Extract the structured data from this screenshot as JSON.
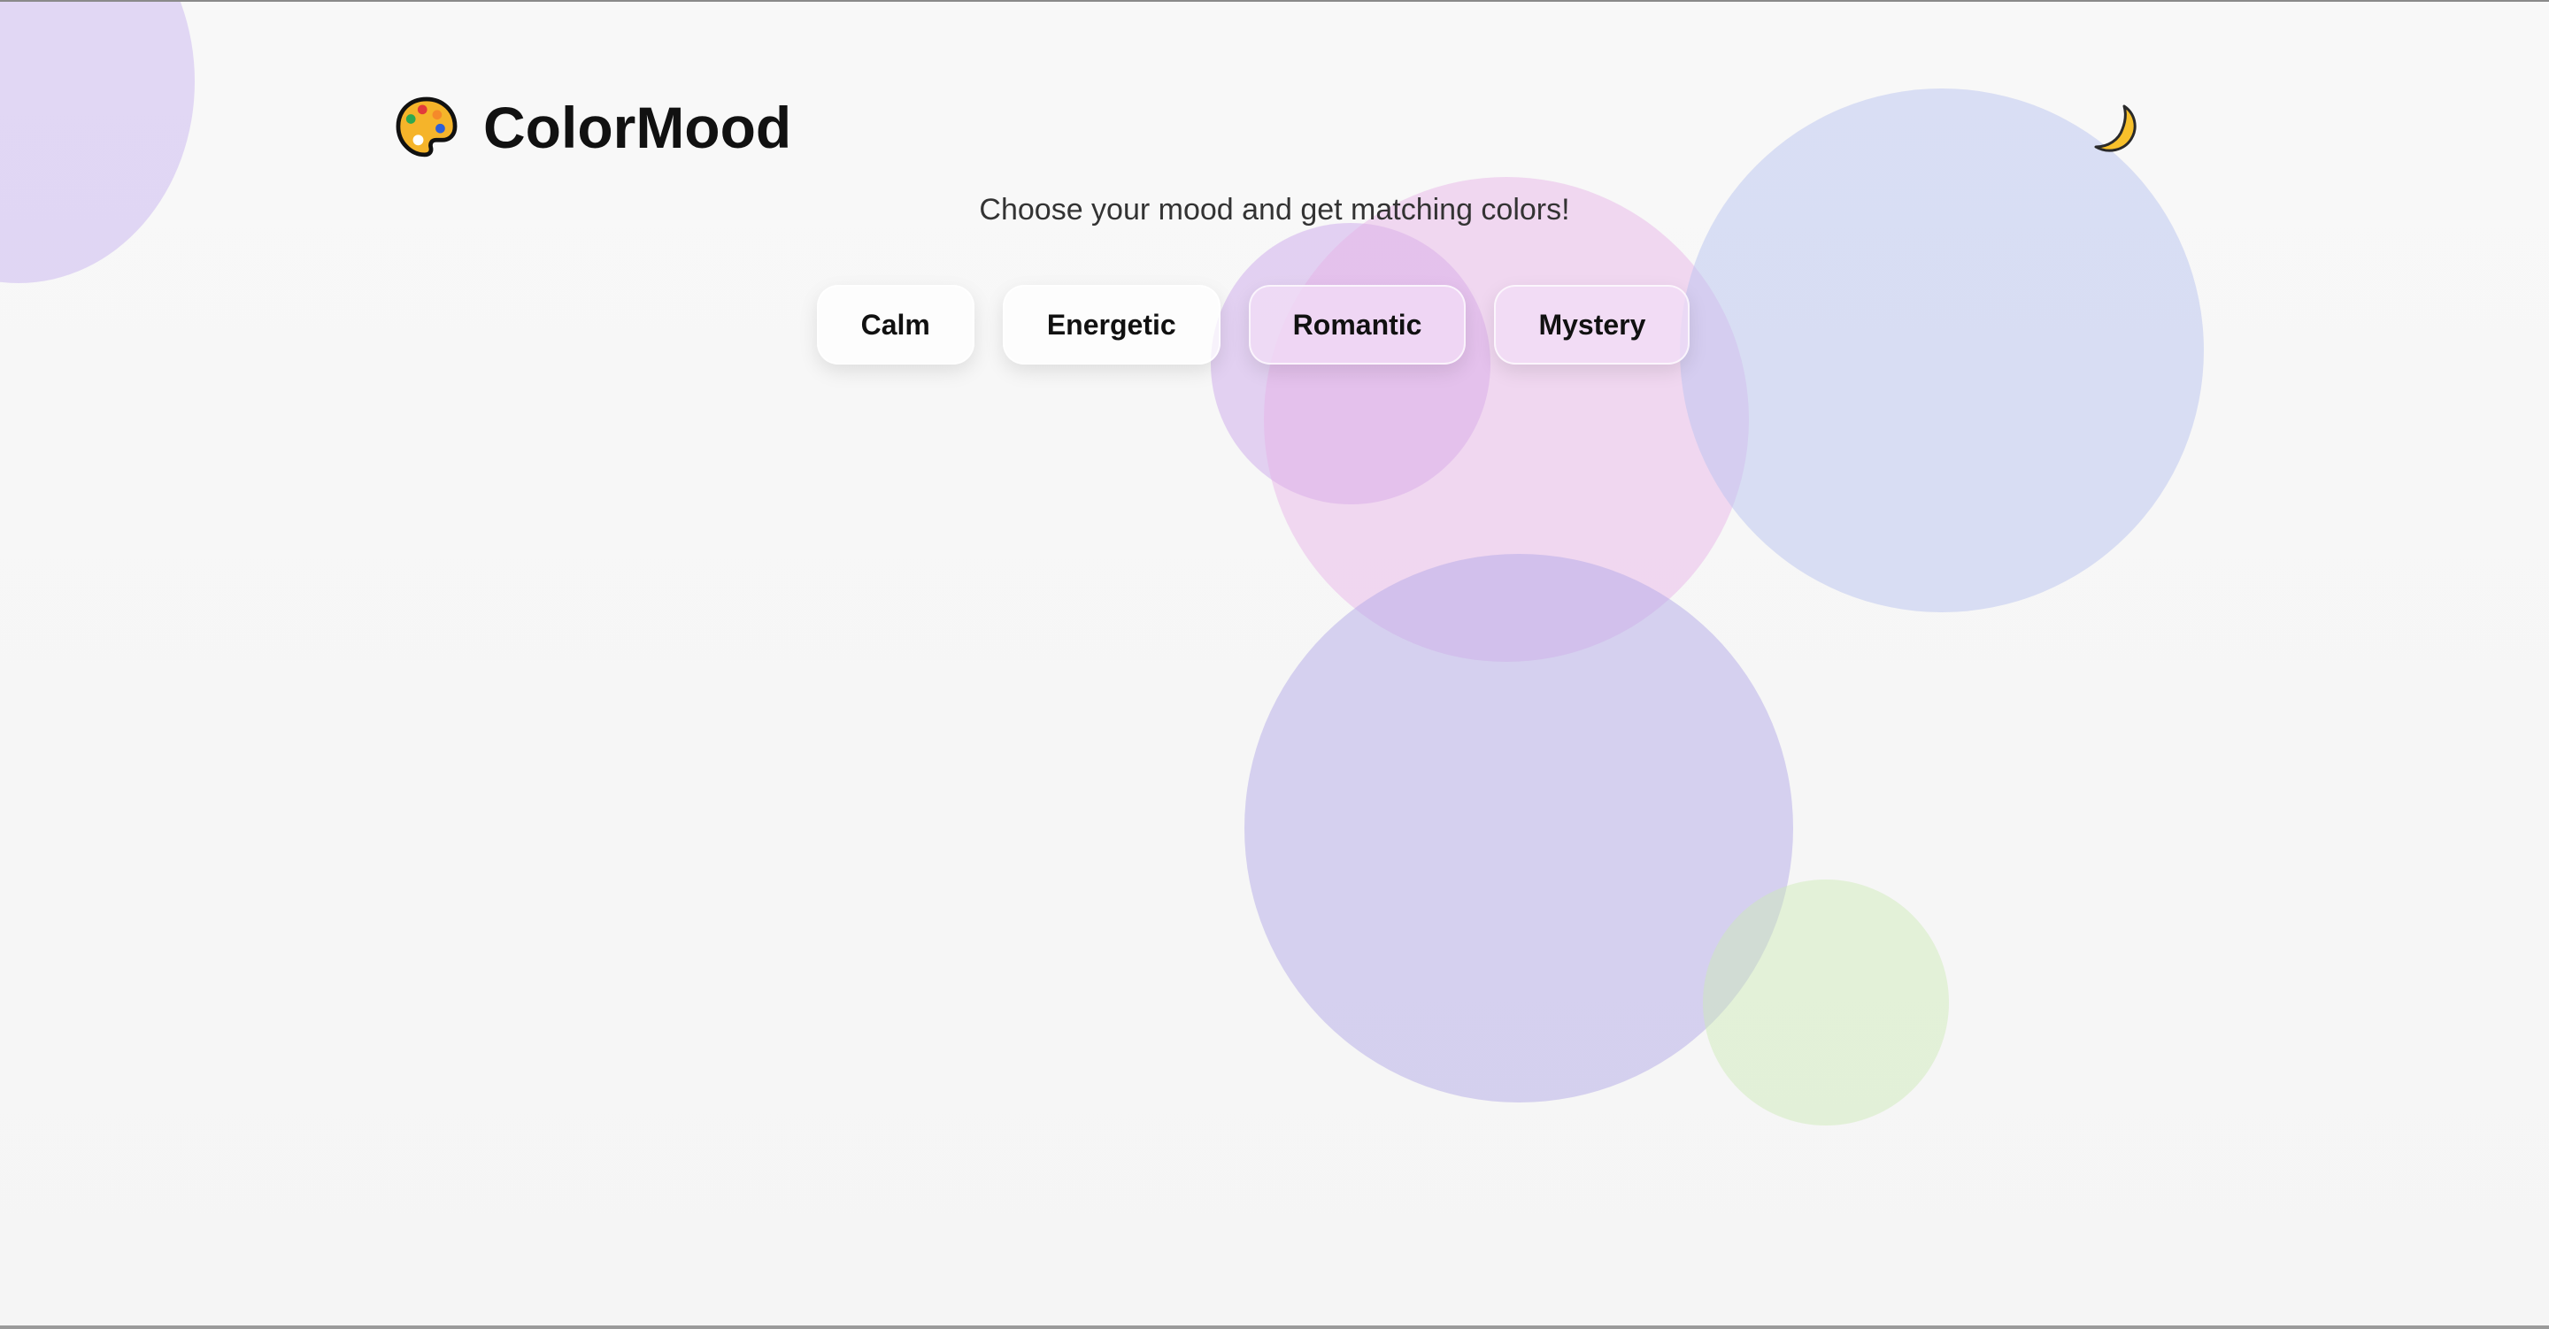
{
  "header": {
    "app_title": "ColorMood",
    "logo_icon": "palette-icon",
    "theme_toggle_icon": "moon-icon"
  },
  "subtitle": "Choose your mood and get matching colors!",
  "moods": [
    {
      "label": "Calm"
    },
    {
      "label": "Energetic"
    },
    {
      "label": "Romantic"
    },
    {
      "label": "Mystery"
    }
  ],
  "colors": {
    "background": "#f7f7f7",
    "title": "#111111",
    "bubble_lavender": "#cdbcf0",
    "bubble_pink": "#e6afe6",
    "bubble_periwinkle": "#b9c3f0",
    "bubble_violet": "#b4aae8",
    "bubble_green": "#cdebb4"
  }
}
